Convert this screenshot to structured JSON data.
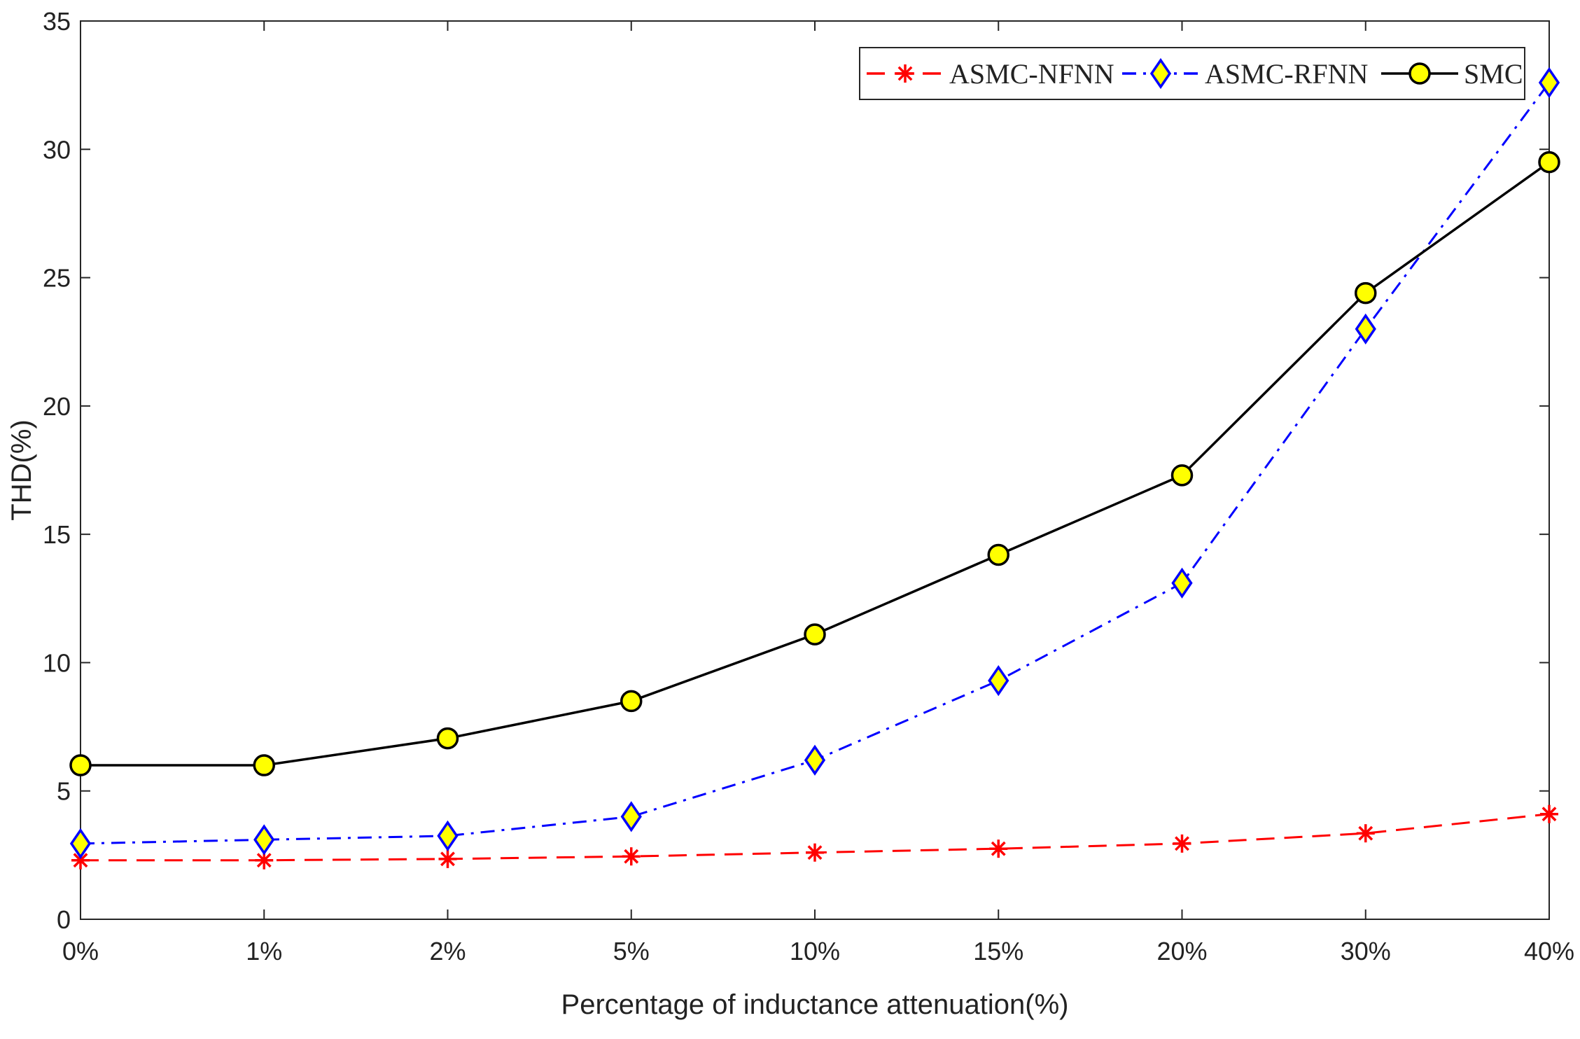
{
  "chart_data": {
    "type": "line",
    "title": "",
    "xlabel": "Percentage of inductance attenuation(%)",
    "ylabel": "THD(%)",
    "categories": [
      "0%",
      "1%",
      "2%",
      "5%",
      "10%",
      "15%",
      "20%",
      "30%",
      "40%"
    ],
    "ylim": [
      0,
      35
    ],
    "yticks": [
      "0",
      "5",
      "10",
      "15",
      "20",
      "25",
      "30",
      "35"
    ],
    "grid": false,
    "legend_position": "top-right",
    "series": [
      {
        "name": "ASMC-NFNN",
        "color": "#ff0000",
        "line_style": "dashed",
        "marker": "asterisk",
        "values": [
          2.3,
          2.3,
          2.35,
          2.45,
          2.6,
          2.75,
          2.95,
          3.35,
          4.1
        ]
      },
      {
        "name": "ASMC-RFNN",
        "color": "#0000ff",
        "line_style": "dash-dot",
        "marker": "diamond",
        "marker_fill": "#ffff00",
        "values": [
          2.95,
          3.1,
          3.25,
          4.0,
          6.2,
          9.3,
          13.1,
          23.0,
          32.6
        ]
      },
      {
        "name": "SMC",
        "color": "#000000",
        "line_style": "solid",
        "marker": "circle",
        "marker_fill": "#ffff00",
        "values": [
          6.0,
          6.0,
          7.05,
          8.5,
          11.1,
          14.2,
          17.3,
          24.4,
          29.5
        ]
      }
    ]
  }
}
